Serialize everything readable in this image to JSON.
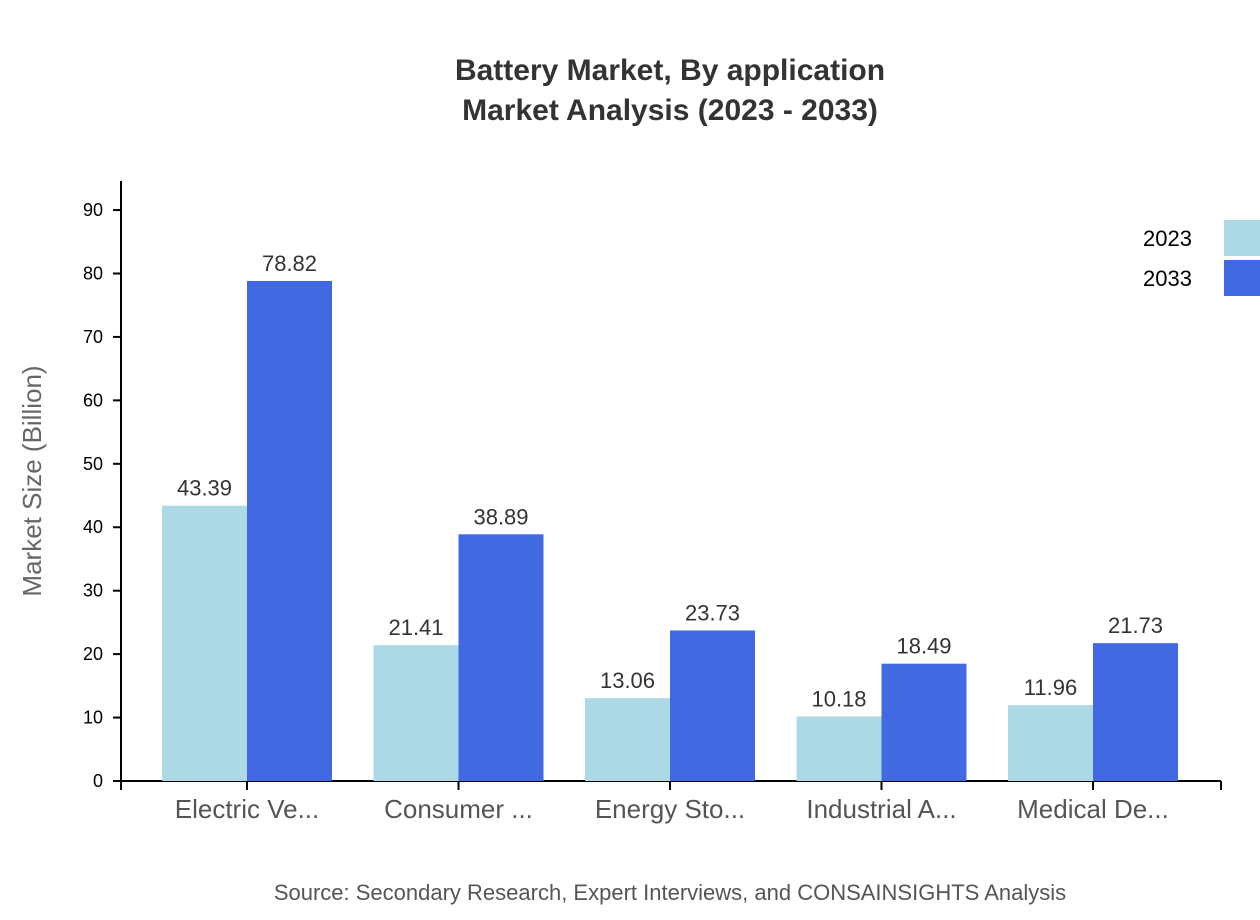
{
  "chart_data": {
    "type": "bar",
    "title": "Battery Market, By application",
    "subtitle": "Market Analysis (2023 - 2033)",
    "ylabel": "Market Size (Billion)",
    "xlabel": "",
    "ylim": [
      0,
      94.58
    ],
    "yticks": [
      0,
      10,
      20,
      30,
      40,
      50,
      60,
      70,
      80,
      90
    ],
    "categories": [
      "Electric Ve...",
      "Consumer ...",
      "Energy Sto...",
      "Industrial A...",
      "Medical De..."
    ],
    "series": [
      {
        "name": "2023",
        "color": "#add8e6",
        "values": [
          43.39,
          21.41,
          13.06,
          10.18,
          11.96
        ]
      },
      {
        "name": "2033",
        "color": "#4169e1",
        "values": [
          78.82,
          38.89,
          23.73,
          18.49,
          21.73
        ]
      }
    ],
    "grid": false,
    "legend": "top-right",
    "source": "Source: Secondary Research, Expert Interviews, and CONSAINSIGHTS Analysis"
  }
}
